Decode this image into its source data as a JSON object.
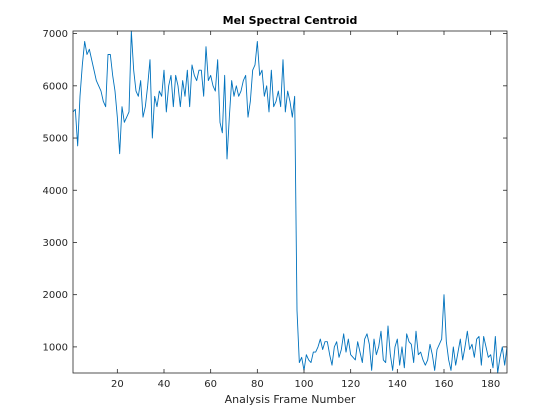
{
  "chart_data": {
    "type": "line",
    "title": "Mel Spectral Centroid",
    "xlabel": "Analysis Frame Number",
    "ylabel": "",
    "xlim": [
      1,
      187
    ],
    "ylim": [
      500,
      7050
    ],
    "xticks": [
      20,
      40,
      60,
      80,
      100,
      120,
      140,
      160,
      180
    ],
    "yticks": [
      1000,
      2000,
      3000,
      4000,
      5000,
      6000,
      7000
    ],
    "grid": false,
    "colors": {
      "line": "#0072BD",
      "axis": "#262626",
      "background": "#ffffff"
    },
    "series": [
      {
        "name": "",
        "y": [
          5500,
          5550,
          4850,
          5800,
          6400,
          6850,
          6600,
          6700,
          6500,
          6300,
          6100,
          6000,
          5900,
          5700,
          5600,
          6600,
          6600,
          6200,
          5900,
          5400,
          4700,
          5600,
          5300,
          5400,
          5500,
          7050,
          6300,
          5900,
          5800,
          6100,
          5400,
          5600,
          6000,
          6500,
          5000,
          5800,
          5600,
          5900,
          5800,
          6300,
          5500,
          6000,
          6200,
          5600,
          6200,
          6000,
          5600,
          6100,
          5800,
          6300,
          5600,
          6400,
          6200,
          6100,
          6300,
          6300,
          5800,
          6750,
          6100,
          6200,
          6000,
          5900,
          6500,
          5300,
          5100,
          6200,
          4600,
          5400,
          6100,
          5800,
          6000,
          5800,
          5900,
          6100,
          6200,
          5400,
          5700,
          6300,
          6400,
          6850,
          6200,
          6300,
          5800,
          6000,
          5500,
          6300,
          5600,
          5700,
          5900,
          5600,
          6500,
          5500,
          5900,
          5700,
          5400,
          5800,
          1700,
          700,
          800,
          550,
          850,
          750,
          700,
          900,
          900,
          1000,
          1150,
          950,
          1100,
          1100,
          850,
          650,
          1000,
          1100,
          800,
          950,
          1250,
          900,
          1150,
          850,
          800,
          750,
          1100,
          900,
          700,
          1150,
          1250,
          1050,
          550,
          1150,
          850,
          1000,
          1300,
          750,
          700,
          1400,
          850,
          550,
          1000,
          1150,
          650,
          1000,
          600,
          1250,
          1100,
          1050,
          700,
          1300,
          850,
          900,
          750,
          650,
          750,
          1050,
          850,
          550,
          950,
          1050,
          1150,
          2000,
          1100,
          750,
          550,
          1000,
          650,
          900,
          1150,
          750,
          1000,
          1300,
          950,
          1050,
          800,
          1150,
          1200,
          650,
          1200,
          1000,
          800,
          850,
          600,
          1200,
          500,
          800,
          1000,
          650,
          1000
        ]
      }
    ]
  }
}
